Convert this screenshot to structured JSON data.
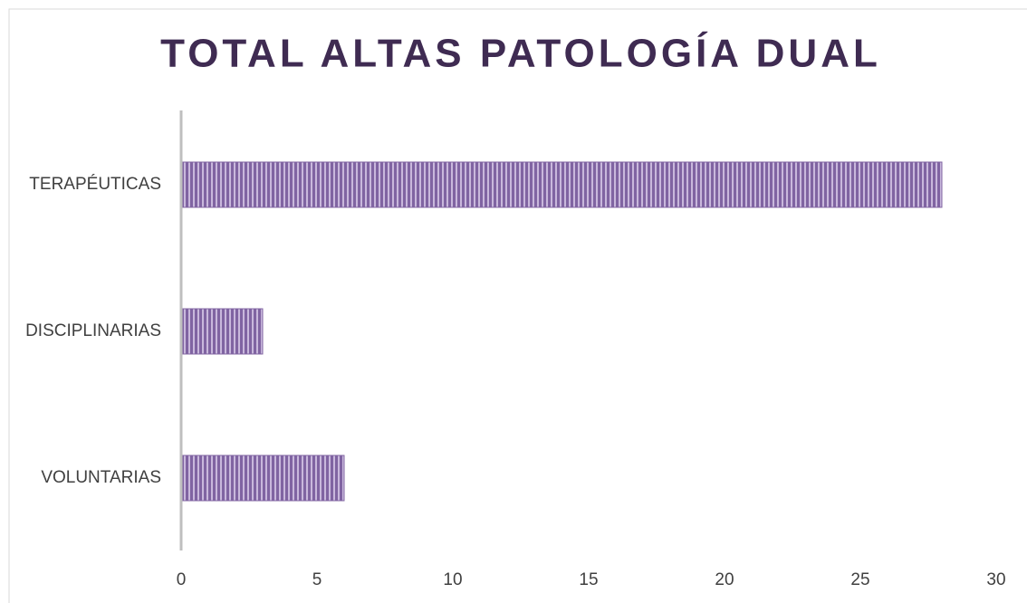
{
  "chart_data": {
    "type": "bar",
    "orientation": "horizontal",
    "title": "TOTAL ALTAS PATOLOGÍA DUAL",
    "categories": [
      "TERAPÉUTICAS",
      "DISCIPLINARIAS",
      "VOLUNTARIAS"
    ],
    "values": [
      28,
      3,
      6
    ],
    "color": "#8064a2",
    "xlim": [
      0,
      30
    ],
    "xticks": [
      0,
      5,
      10,
      15,
      20,
      25,
      30
    ],
    "grid": false
  }
}
